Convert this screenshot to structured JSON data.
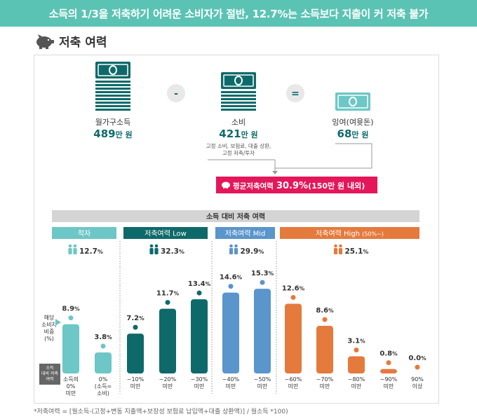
{
  "header": {
    "title": "소득의 1/3을 저축하기 어려운 소비자가 절반, 12.7%는 소득보다 지출이 커 저축 불가"
  },
  "section": {
    "title": "저축 여력",
    "icon": "piggy-bank-icon"
  },
  "equation": {
    "income": {
      "label": "월가구소득",
      "value": "489",
      "unit": "만 원"
    },
    "minus": "-",
    "spend": {
      "label": "소비",
      "value": "421",
      "unit": "만 원",
      "note1": "고정 소비, 보험료, 대출 상환,",
      "note2": "고정 저축/투자"
    },
    "equals": "=",
    "surplus": {
      "label": "잉여(여윳돈)",
      "value": "68",
      "unit": "만 원"
    },
    "avg_label": "평균저축여력",
    "avg_value": "30.9%",
    "avg_note": "(150만 원 내외)"
  },
  "groups_header": "소득 대비 저축 여력",
  "groups": [
    {
      "label": "적자",
      "share": "12.7",
      "unit": "%",
      "color": "#6cc7c6"
    },
    {
      "label": "저축여력 Low",
      "share": "32.3",
      "unit": "%",
      "color": "#0e6a6a"
    },
    {
      "label": "저축여력 Mid",
      "share": "29.9",
      "unit": "%",
      "color": "#5a95cc"
    },
    {
      "label": "저축여력 High",
      "label_suffix": "(50%~)",
      "share": "25.1",
      "unit": "%",
      "color": "#e57a3d"
    }
  ],
  "axis": {
    "ylabel_1": "해당",
    "ylabel_2": "소비자",
    "ylabel_3": "비중",
    "ylabel_4": "(%)",
    "xlabel_1": "소득",
    "xlabel_2": "대비 저축",
    "xlabel_3": "여력"
  },
  "chart_data": {
    "type": "bar",
    "ylabel": "해당 소비자 비중 (%)",
    "xlabel": "소득 대비 저축 여력",
    "categories": [
      "소득의 0% 미만",
      "0% (소득=소비)",
      "~10% 미만",
      "~20% 미만",
      "~30% 미만",
      "~40% 미만",
      "~50% 미만",
      "~60% 미만",
      "~70% 미만",
      "~80% 미만",
      "~90% 미만",
      "90% 이상"
    ],
    "category_lines": [
      [
        "소득의",
        "0%",
        "미만"
      ],
      [
        "0%",
        "(소득=",
        "소비)"
      ],
      [
        "~10%",
        "미만"
      ],
      [
        "~20%",
        "미만"
      ],
      [
        "~30%",
        "미만"
      ],
      [
        "~40%",
        "미만"
      ],
      [
        "~50%",
        "미만"
      ],
      [
        "~60%",
        "미만"
      ],
      [
        "~70%",
        "미만"
      ],
      [
        "~80%",
        "미만"
      ],
      [
        "~90%",
        "미만"
      ],
      [
        "90%",
        "이상"
      ]
    ],
    "values": [
      8.9,
      3.8,
      7.2,
      11.7,
      13.4,
      14.6,
      15.3,
      12.6,
      8.6,
      3.1,
      0.8,
      0.0
    ],
    "value_labels": [
      "8.9",
      "3.8",
      "7.2",
      "11.7",
      "13.4",
      "14.6",
      "15.3",
      "12.6",
      "8.6",
      "3.1",
      "0.8",
      "0.0"
    ],
    "group_index": [
      0,
      0,
      1,
      1,
      1,
      2,
      2,
      3,
      3,
      3,
      3,
      3
    ],
    "unit": "%"
  },
  "footnote": "*저축여력 = [월소득-(고정+변동 지출액+보장성 보험료 납입액+대출 상환액)] / 월소득 *100)"
}
